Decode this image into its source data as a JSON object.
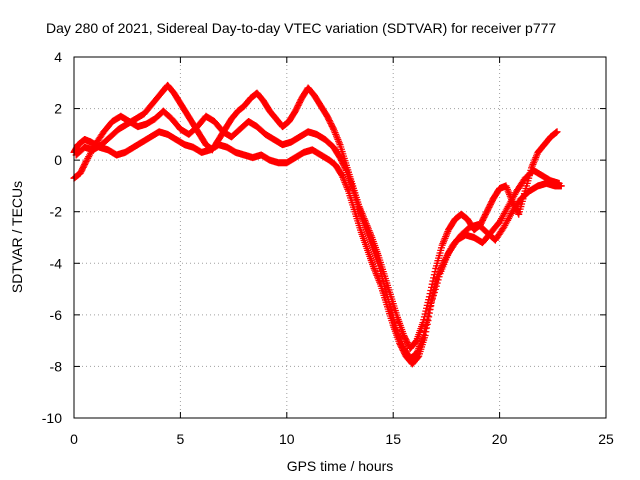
{
  "chart_data": {
    "type": "scatter",
    "title": "Day 280 of 2021, Sidereal Day-to-day VTEC variation (SDTVAR) for receiver p777",
    "xlabel": "GPS time / hours",
    "ylabel": "SDTVAR / TECUs",
    "xlim": [
      0,
      25
    ],
    "ylim": [
      -10,
      4
    ],
    "xticks": [
      "0",
      "5",
      "10",
      "15",
      "20",
      "25"
    ],
    "yticks": [
      "4",
      "2",
      "0",
      "-2",
      "-4",
      "-6",
      "-8",
      "-10"
    ],
    "grid": true,
    "marker": "plus",
    "series_color": "#ff0000",
    "series": [
      {
        "tracks": [
          {
            "x": [
              0.0,
              0.2,
              0.5,
              0.8,
              1.2,
              1.6,
              2.0,
              2.4,
              2.8,
              3.2,
              3.6,
              4.0,
              4.4,
              4.8,
              5.2,
              5.6,
              6.0,
              6.4,
              6.8,
              7.2,
              7.6,
              8.0,
              8.4,
              8.8,
              9.2,
              9.6,
              10.0,
              10.4,
              10.8,
              11.2,
              11.6,
              12.0,
              12.3,
              12.6,
              12.9,
              13.2,
              13.5,
              13.8,
              14.1,
              14.4,
              14.7,
              15.0,
              15.3,
              15.6,
              15.9,
              16.2,
              16.5,
              16.8,
              17.2,
              17.6,
              18.0,
              18.4,
              18.8,
              19.2,
              19.6,
              20.0,
              20.4,
              20.8,
              21.2,
              21.6,
              22.0,
              22.4,
              22.8
            ],
            "y": [
              0.3,
              0.6,
              0.8,
              0.7,
              0.5,
              0.4,
              0.2,
              0.3,
              0.5,
              0.7,
              0.9,
              1.1,
              1.0,
              0.8,
              0.6,
              0.5,
              0.3,
              0.4,
              0.6,
              0.5,
              0.3,
              0.2,
              0.1,
              0.2,
              0.0,
              -0.1,
              -0.1,
              0.1,
              0.3,
              0.4,
              0.2,
              0.0,
              -0.2,
              -0.6,
              -1.2,
              -2.0,
              -2.8,
              -3.5,
              -4.2,
              -4.8,
              -5.6,
              -6.4,
              -7.1,
              -7.6,
              -7.9,
              -7.6,
              -6.8,
              -5.5,
              -4.4,
              -3.6,
              -3.1,
              -2.9,
              -3.0,
              -3.2,
              -2.8,
              -2.4,
              -1.8,
              -1.2,
              -0.7,
              -0.4,
              -0.6,
              -0.8,
              -0.9
            ]
          },
          {
            "x": [
              0.0,
              0.3,
              0.6,
              1.0,
              1.4,
              1.8,
              2.2,
              2.6,
              3.0,
              3.4,
              3.8,
              4.2,
              4.6,
              5.0,
              5.4,
              5.8,
              6.2,
              6.6,
              7.0,
              7.4,
              7.8,
              8.2,
              8.6,
              9.0,
              9.4,
              9.8,
              10.2,
              10.6,
              11.0,
              11.4,
              11.8,
              12.2,
              12.5,
              12.8,
              13.1,
              13.4,
              13.7,
              14.0,
              14.3,
              14.6,
              14.9,
              15.2,
              15.5,
              15.8,
              16.1,
              16.4,
              16.7,
              17.0,
              17.4,
              17.8,
              18.2,
              18.6,
              19.0,
              19.4,
              19.8,
              20.2,
              20.6,
              21.0,
              21.4,
              21.8,
              22.2,
              22.6,
              22.9
            ],
            "y": [
              -0.7,
              -0.5,
              0.0,
              0.6,
              1.1,
              1.5,
              1.7,
              1.5,
              1.3,
              1.4,
              1.6,
              1.9,
              1.6,
              1.2,
              1.0,
              1.3,
              1.7,
              1.5,
              1.1,
              0.9,
              1.2,
              1.5,
              1.3,
              1.0,
              0.8,
              0.6,
              0.7,
              0.9,
              1.1,
              1.0,
              0.8,
              0.5,
              0.1,
              -0.4,
              -1.1,
              -1.9,
              -2.6,
              -3.3,
              -4.0,
              -4.9,
              -5.8,
              -6.7,
              -7.3,
              -7.7,
              -7.5,
              -6.9,
              -5.8,
              -4.7,
              -3.9,
              -3.3,
              -2.9,
              -2.6,
              -2.5,
              -2.8,
              -3.1,
              -2.6,
              -2.0,
              -1.5,
              -1.2,
              -1.0,
              -0.9,
              -1.0,
              -1.0
            ]
          },
          {
            "x": [
              0.1,
              0.5,
              0.9,
              1.3,
              1.7,
              2.1,
              2.5,
              2.9,
              3.3,
              3.7,
              4.1,
              4.4,
              4.7,
              5.0,
              5.3,
              5.6,
              5.9,
              6.2,
              6.5,
              6.8,
              7.1,
              7.4,
              7.7,
              8.0,
              8.3,
              8.6,
              8.9,
              9.2,
              9.5,
              9.8,
              10.1,
              10.4,
              10.7,
              11.0,
              11.3,
              11.6,
              11.9,
              12.2,
              12.5,
              12.8,
              13.1,
              13.4,
              13.7,
              14.0,
              14.3,
              14.6,
              14.9,
              15.2,
              15.5,
              15.8,
              16.1,
              16.4,
              16.7,
              17.0,
              17.3,
              17.6,
              17.9,
              18.2,
              18.5,
              18.8,
              19.1,
              19.4,
              19.7,
              20.0,
              20.3,
              20.6,
              20.9,
              21.2,
              21.5,
              21.8,
              22.1,
              22.4,
              22.7
            ],
            "y": [
              0.2,
              0.5,
              0.4,
              0.6,
              0.9,
              1.2,
              1.4,
              1.6,
              1.8,
              2.2,
              2.6,
              2.9,
              2.6,
              2.2,
              1.8,
              1.4,
              1.0,
              0.6,
              0.4,
              0.8,
              1.2,
              1.6,
              1.9,
              2.1,
              2.4,
              2.6,
              2.3,
              1.9,
              1.6,
              1.3,
              1.5,
              1.9,
              2.4,
              2.8,
              2.5,
              2.1,
              1.7,
              1.2,
              0.6,
              -0.2,
              -1.0,
              -1.8,
              -2.4,
              -3.0,
              -3.7,
              -4.5,
              -5.3,
              -6.1,
              -6.8,
              -7.3,
              -7.0,
              -6.3,
              -5.3,
              -4.2,
              -3.3,
              -2.7,
              -2.3,
              -2.1,
              -2.3,
              -2.7,
              -2.5,
              -2.0,
              -1.5,
              -1.1,
              -1.0,
              -1.6,
              -2.1,
              -1.2,
              -0.3,
              0.3,
              0.6,
              0.9,
              1.1
            ]
          }
        ]
      }
    ]
  }
}
